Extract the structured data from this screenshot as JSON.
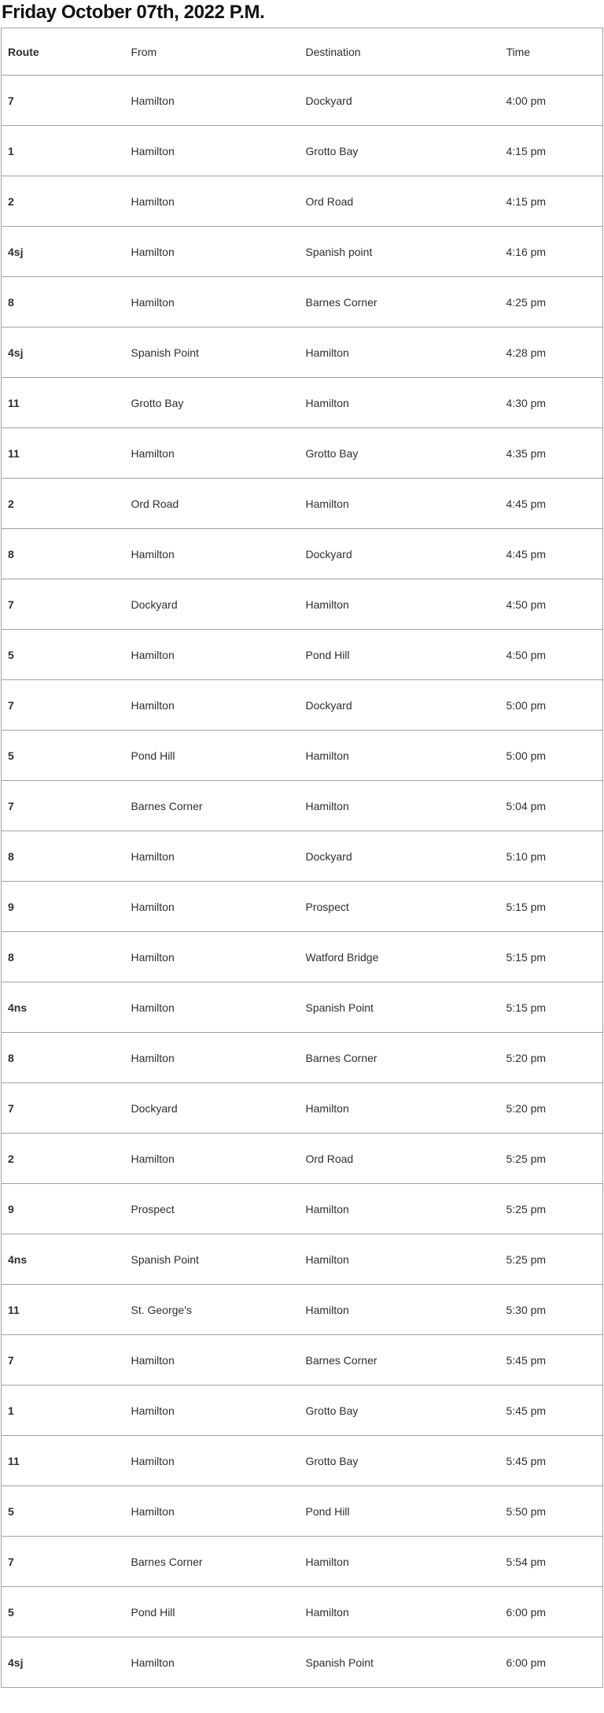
{
  "page": {
    "title": "Friday October 07th, 2022 P.M."
  },
  "table": {
    "columns": [
      "Route",
      "From",
      "Destination",
      "Time"
    ],
    "row_keys": [
      "route",
      "from",
      "destination",
      "time"
    ],
    "rows": [
      {
        "route": "7",
        "from": "Hamilton",
        "destination": "Dockyard",
        "time": "4:00 pm"
      },
      {
        "route": "1",
        "from": "Hamilton",
        "destination": "Grotto Bay",
        "time": "4:15 pm"
      },
      {
        "route": "2",
        "from": "Hamilton",
        "destination": "Ord Road",
        "time": "4:15 pm"
      },
      {
        "route": "4sj",
        "from": "Hamilton",
        "destination": "Spanish point",
        "time": "4:16 pm"
      },
      {
        "route": "8",
        "from": "Hamilton",
        "destination": "Barnes Corner",
        "time": "4:25 pm"
      },
      {
        "route": "4sj",
        "from": "Spanish Point",
        "destination": "Hamilton",
        "time": "4:28 pm"
      },
      {
        "route": "11",
        "from": "Grotto Bay",
        "destination": "Hamilton",
        "time": "4:30 pm"
      },
      {
        "route": "11",
        "from": "Hamilton",
        "destination": "Grotto Bay",
        "time": "4:35 pm"
      },
      {
        "route": "2",
        "from": "Ord Road",
        "destination": "Hamilton",
        "time": "4:45 pm"
      },
      {
        "route": "8",
        "from": "Hamilton",
        "destination": "Dockyard",
        "time": "4:45 pm"
      },
      {
        "route": "7",
        "from": "Dockyard",
        "destination": "Hamilton",
        "time": "4:50 pm"
      },
      {
        "route": "5",
        "from": "Hamilton",
        "destination": "Pond Hill",
        "time": "4:50 pm"
      },
      {
        "route": "7",
        "from": "Hamilton",
        "destination": "Dockyard",
        "time": "5:00 pm"
      },
      {
        "route": "5",
        "from": "Pond Hill",
        "destination": "Hamilton",
        "time": "5:00 pm"
      },
      {
        "route": "7",
        "from": "Barnes Corner",
        "destination": "Hamilton",
        "time": "5:04 pm"
      },
      {
        "route": "8",
        "from": "Hamilton",
        "destination": "Dockyard",
        "time": "5:10 pm"
      },
      {
        "route": "9",
        "from": "Hamilton",
        "destination": "Prospect",
        "time": "5:15 pm"
      },
      {
        "route": "8",
        "from": "Hamilton",
        "destination": "Watford Bridge",
        "time": "5:15 pm"
      },
      {
        "route": "4ns",
        "from": "Hamilton",
        "destination": "Spanish Point",
        "time": "5:15 pm"
      },
      {
        "route": "8",
        "from": "Hamilton",
        "destination": "Barnes Corner",
        "time": "5:20 pm"
      },
      {
        "route": "7",
        "from": "Dockyard",
        "destination": "Hamilton",
        "time": "5:20 pm"
      },
      {
        "route": "2",
        "from": "Hamilton",
        "destination": "Ord Road",
        "time": "5:25 pm"
      },
      {
        "route": "9",
        "from": "Prospect",
        "destination": "Hamilton",
        "time": "5:25 pm"
      },
      {
        "route": "4ns",
        "from": "Spanish Point",
        "destination": "Hamilton",
        "time": "5:25 pm"
      },
      {
        "route": "11",
        "from": "St. George's",
        "destination": "Hamilton",
        "time": "5:30 pm"
      },
      {
        "route": "7",
        "from": "Hamilton",
        "destination": "Barnes Corner",
        "time": "5:45 pm"
      },
      {
        "route": "1",
        "from": "Hamilton",
        "destination": "Grotto Bay",
        "time": "5:45 pm"
      },
      {
        "route": "11",
        "from": "Hamilton",
        "destination": "Grotto Bay",
        "time": "5:45 pm"
      },
      {
        "route": "5",
        "from": "Hamilton",
        "destination": "Pond Hill",
        "time": "5:50 pm"
      },
      {
        "route": "7",
        "from": "Barnes Corner",
        "destination": "Hamilton",
        "time": "5:54 pm"
      },
      {
        "route": "5",
        "from": "Pond Hill",
        "destination": "Hamilton",
        "time": "6:00 pm"
      },
      {
        "route": "4sj",
        "from": "Hamilton",
        "destination": "Spanish Point",
        "time": "6:00 pm"
      }
    ]
  },
  "colors": {
    "border": "#a1a1a1",
    "text": "#2e2e2e",
    "title": "#111111",
    "background": "#ffffff"
  }
}
